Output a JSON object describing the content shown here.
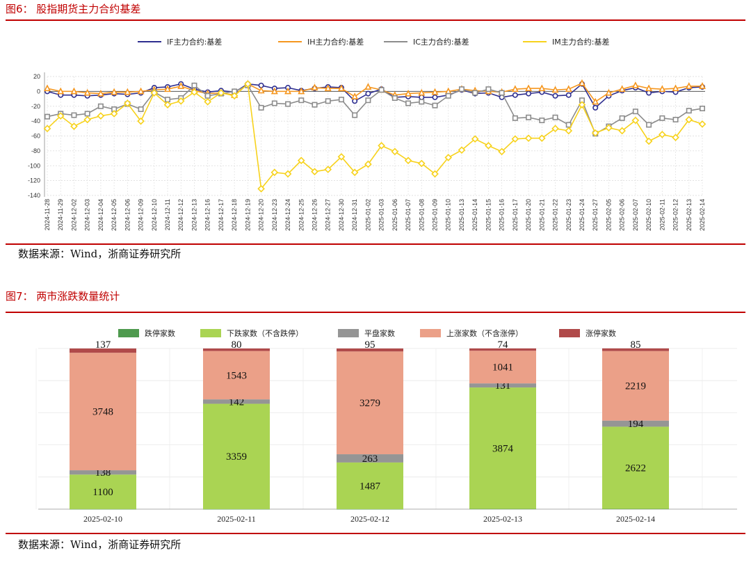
{
  "fig6": {
    "title": "图6：  股指期货主力合约基差",
    "source": "数据来源：Wind，浙商证券研究所"
  },
  "fig7": {
    "title": "图7：  两市涨跌数量统计",
    "source": "数据来源：Wind，浙商证券研究所"
  },
  "colors": {
    "title": "#c00000",
    "IF": "#2e2e8f",
    "IH": "#f5961e",
    "IC": "#8c8c8c",
    "IM": "#f7d21c",
    "limit_down": "#4e9a4e",
    "down": "#aad453",
    "flat": "#959595",
    "up": "#eba088",
    "limit_up": "#b04a4a"
  },
  "chart_data": [
    {
      "type": "line",
      "categories": [
        "2024-11-28",
        "2024-11-29",
        "2024-12-02",
        "2024-12-03",
        "2024-12-04",
        "2024-12-05",
        "2024-12-06",
        "2024-12-09",
        "2024-12-10",
        "2024-12-11",
        "2024-12-12",
        "2024-12-13",
        "2024-12-16",
        "2024-12-17",
        "2024-12-18",
        "2024-12-19",
        "2024-12-20",
        "2024-12-23",
        "2024-12-24",
        "2024-12-25",
        "2024-12-26",
        "2024-12-27",
        "2024-12-30",
        "2024-12-31",
        "2025-01-02",
        "2025-01-03",
        "2025-01-06",
        "2025-01-07",
        "2025-01-08",
        "2025-01-09",
        "2025-01-10",
        "2025-01-13",
        "2025-01-14",
        "2025-01-15",
        "2025-01-16",
        "2025-01-17",
        "2025-01-20",
        "2025-01-21",
        "2025-01-22",
        "2025-01-23",
        "2025-01-24",
        "2025-01-27",
        "2025-02-05",
        "2025-02-06",
        "2025-02-07",
        "2025-02-10",
        "2025-02-11",
        "2025-02-12",
        "2025-02-13",
        "2025-02-14"
      ],
      "yticks": [
        20,
        0,
        -20,
        -40,
        -60,
        -80,
        -100,
        -120,
        -140
      ],
      "ylim": [
        -140,
        20
      ],
      "grid": true,
      "legend_position": "top",
      "series": [
        {
          "name": "IF主力合约:基差",
          "color_key": "IF",
          "marker": "circle",
          "values": [
            0,
            -5,
            -5,
            -6,
            -5,
            -3,
            -4,
            -2,
            5,
            6,
            10,
            3,
            -1,
            1,
            -1,
            10,
            8,
            4,
            5,
            1,
            4,
            6,
            5,
            -13,
            -3,
            3,
            -8,
            -7,
            -8,
            -8,
            -5,
            2,
            -3,
            -2,
            -8,
            -5,
            -3,
            -1,
            -6,
            -5,
            10,
            -22,
            -6,
            1,
            5,
            -2,
            0,
            -1,
            5,
            6
          ]
        },
        {
          "name": "IH主力合约:基差",
          "color_key": "IH",
          "marker": "triangle",
          "values": [
            4,
            0,
            0,
            -2,
            -3,
            -1,
            -1,
            0,
            2,
            3,
            7,
            1,
            -3,
            -2,
            -5,
            10,
            1,
            0,
            0,
            0,
            5,
            4,
            4,
            -7,
            6,
            2,
            -5,
            -3,
            -2,
            -1,
            0,
            3,
            1,
            0,
            -1,
            3,
            4,
            4,
            2,
            3,
            11,
            -14,
            -2,
            3,
            8,
            4,
            3,
            4,
            7,
            7
          ]
        },
        {
          "name": "IC主力合约:基差",
          "color_key": "IC",
          "marker": "square",
          "values": [
            -34,
            -30,
            -32,
            -30,
            -20,
            -24,
            -17,
            -24,
            -1,
            -11,
            -9,
            8,
            -6,
            -3,
            0,
            8,
            -22,
            -16,
            -17,
            -12,
            -18,
            -13,
            -11,
            -32,
            -12,
            2,
            -9,
            -16,
            -14,
            -19,
            -6,
            3,
            -2,
            3,
            -2,
            -36,
            -35,
            -39,
            -35,
            -45,
            -12,
            -57,
            -47,
            -36,
            -27,
            -45,
            -36,
            -38,
            -26,
            -23
          ]
        },
        {
          "name": "IM主力合约:基差",
          "color_key": "IM",
          "marker": "diamond",
          "values": [
            -50,
            -33,
            -47,
            -38,
            -33,
            -30,
            -16,
            -40,
            -2,
            -18,
            -13,
            -1,
            -14,
            -2,
            -6,
            10,
            -131,
            -109,
            -111,
            -93,
            -108,
            -105,
            -88,
            -109,
            -98,
            -73,
            -81,
            -93,
            -97,
            -111,
            -89,
            -79,
            -64,
            -73,
            -81,
            -64,
            -63,
            -63,
            -50,
            -53,
            -18,
            -56,
            -49,
            -53,
            -39,
            -67,
            -58,
            -62,
            -38,
            -44
          ]
        }
      ]
    },
    {
      "type": "bar",
      "stacked": true,
      "categories": [
        "2025-02-10",
        "2025-02-11",
        "2025-02-12",
        "2025-02-13",
        "2025-02-14"
      ],
      "legend_position": "top",
      "series": [
        {
          "name": "跌停家数",
          "color_key": "limit_down",
          "values": [
            3,
            2,
            2,
            8,
            9
          ]
        },
        {
          "name": "下跌家数（不含跌停）",
          "color_key": "down",
          "values": [
            1100,
            3359,
            1487,
            3874,
            2622
          ]
        },
        {
          "name": "平盘家数",
          "color_key": "flat",
          "values": [
            138,
            142,
            263,
            131,
            194
          ]
        },
        {
          "name": "上涨家数（不含涨停）",
          "color_key": "up",
          "values": [
            3748,
            1543,
            3279,
            1041,
            2219
          ]
        },
        {
          "name": "涨停家数",
          "color_key": "limit_up",
          "values": [
            137,
            80,
            95,
            74,
            85
          ]
        }
      ]
    }
  ]
}
